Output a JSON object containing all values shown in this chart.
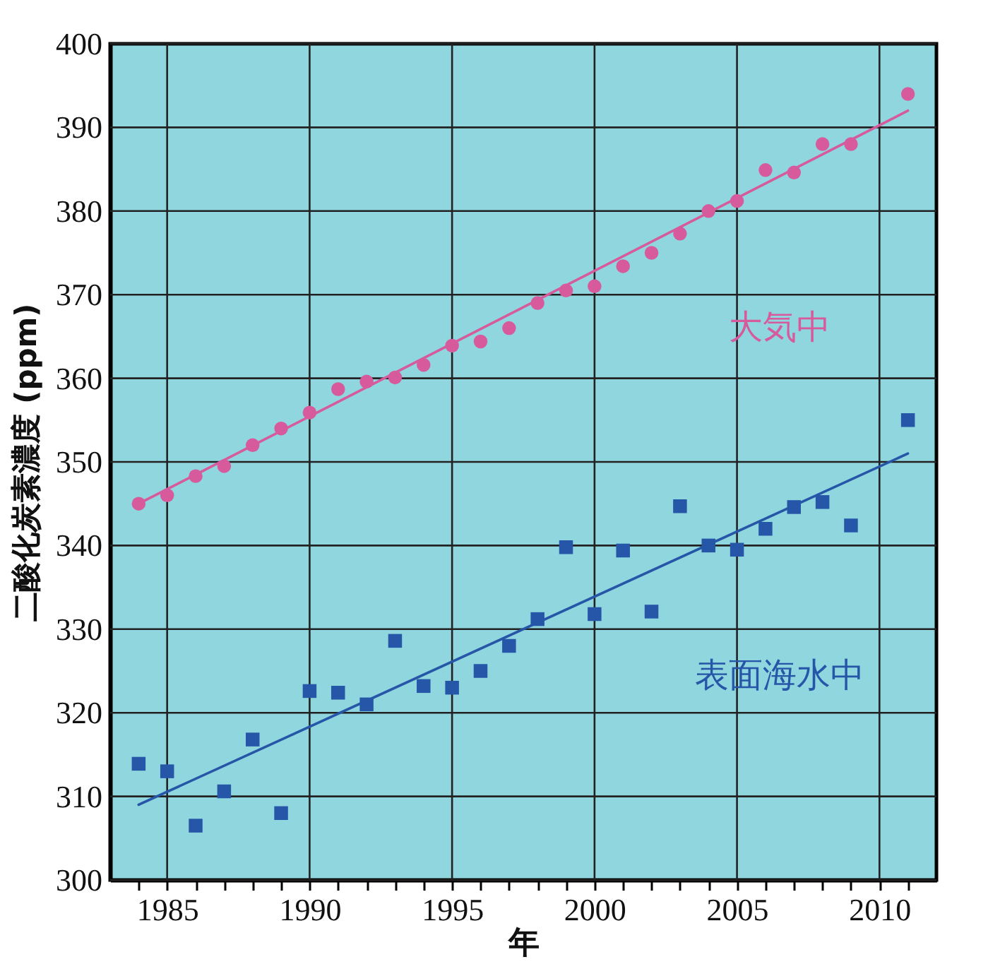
{
  "chart_data": {
    "type": "scatter",
    "xlabel": "年",
    "ylabel": "二酸化炭素濃度 (ppm)",
    "xlim": [
      1983,
      2012
    ],
    "xticks": [
      {
        "value": 1984,
        "label": null
      },
      1985,
      {
        "value": 1986,
        "label": null
      },
      {
        "value": 1987,
        "label": null
      },
      {
        "value": 1988,
        "label": null
      },
      {
        "value": 1989,
        "label": null
      },
      1990,
      {
        "value": 1991,
        "label": null
      },
      {
        "value": 1992,
        "label": null
      },
      {
        "value": 1993,
        "label": null
      },
      {
        "value": 1994,
        "label": null
      },
      1995,
      {
        "value": 1996,
        "label": null
      },
      {
        "value": 1997,
        "label": null
      },
      {
        "value": 1998,
        "label": null
      },
      {
        "value": 1999,
        "label": null
      },
      2000,
      {
        "value": 2001,
        "label": null
      },
      {
        "value": 2002,
        "label": null
      },
      {
        "value": 2003,
        "label": null
      },
      {
        "value": 2004,
        "label": null
      },
      2005,
      {
        "value": 2006,
        "label": null
      },
      {
        "value": 2007,
        "label": null
      },
      {
        "value": 2008,
        "label": null
      },
      {
        "value": 2009,
        "label": null
      },
      2010,
      {
        "value": 2011,
        "label": null
      }
    ],
    "ylim": [
      300,
      400
    ],
    "yticks": [
      300,
      310,
      320,
      330,
      340,
      350,
      360,
      370,
      380,
      390,
      400
    ],
    "grid": true,
    "series": [
      {
        "name": "大気中",
        "color": "#d65a9c",
        "marker": "circle",
        "x": [
          1984,
          1985,
          1986,
          1987,
          1988,
          1989,
          1990,
          1991,
          1992,
          1993,
          1994,
          1995,
          1996,
          1997,
          1998,
          1999,
          2000,
          2001,
          2002,
          2003,
          2004,
          2005,
          2006,
          2007,
          2008,
          2009,
          2011
        ],
        "values": [
          345,
          346,
          348.3,
          349.5,
          352,
          354,
          355.9,
          358.7,
          359.6,
          360.1,
          361.6,
          363.9,
          364.4,
          366,
          369,
          370.5,
          371,
          373.4,
          375,
          377.3,
          380,
          381.2,
          384.9,
          384.6,
          388,
          388,
          394
        ]
      },
      {
        "name": "表面海水中",
        "color": "#2656a8",
        "marker": "square",
        "x": [
          1984,
          1985,
          1986,
          1987,
          1988,
          1989,
          1990,
          1991,
          1992,
          1993,
          1994,
          1995,
          1996,
          1997,
          1998,
          1999,
          2000,
          2001,
          2002,
          2003,
          2004,
          2005,
          2006,
          2007,
          2008,
          2009,
          2011
        ],
        "values": [
          313.9,
          313,
          306.5,
          310.6,
          316.8,
          308,
          322.6,
          322.4,
          321,
          328.6,
          323.2,
          323,
          325,
          328,
          331.2,
          339.8,
          331.8,
          339.4,
          332.1,
          344.7,
          340,
          339.5,
          342,
          344.6,
          345.2,
          342.4,
          355
        ]
      },
      {
        "type": "line",
        "color": "#d65a9c",
        "line_style": "solid",
        "x": [
          1984,
          2011
        ],
        "values": [
          345,
          392
        ]
      },
      {
        "type": "line",
        "color": "#2656a8",
        "line_style": "solid",
        "x": [
          1984,
          2011
        ],
        "values": [
          309,
          351
        ]
      }
    ]
  }
}
